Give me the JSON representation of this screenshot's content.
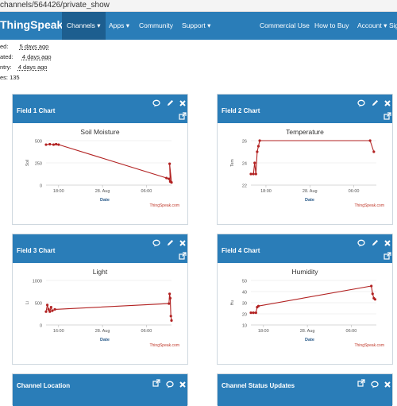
{
  "browser": {
    "url": "channels/564426/private_show"
  },
  "nav": {
    "brand": "ThingSpeak™",
    "items": [
      {
        "label": "Channels ▾",
        "active": true
      },
      {
        "label": "Apps ▾"
      },
      {
        "label": "Community"
      },
      {
        "label": "Support ▾"
      },
      {
        "label": "Commercial Use"
      },
      {
        "label": "How to Buy"
      },
      {
        "label": "Account ▾"
      },
      {
        "label": "Sig"
      }
    ]
  },
  "channel_info": [
    {
      "label": "ed:",
      "value": "5 days ago"
    },
    {
      "label": "ated:",
      "value": "4 days ago"
    },
    {
      "label": "ntry:",
      "value": "4 days ago"
    },
    {
      "label": "es: 135",
      "value": ""
    }
  ],
  "panels": {
    "field1": {
      "title": "Field 1 Chart"
    },
    "field2": {
      "title": "Field 2 Chart"
    },
    "field3": {
      "title": "Field 3 Chart"
    },
    "field4": {
      "title": "Field 4 Chart"
    },
    "location": {
      "title": "Channel Location"
    },
    "status": {
      "title": "Channel Status Updates"
    }
  },
  "chart_data": [
    {
      "id": "c1",
      "type": "line",
      "title": "Soil Moisture",
      "xlabel": "Date",
      "ylabel": "Soil",
      "ylim": [
        0,
        500
      ],
      "yticks": [
        0,
        250,
        500
      ],
      "xticks": [
        {
          "label": "18:00",
          "t": 0.1
        },
        {
          "label": "28. Aug",
          "t": 0.45
        },
        {
          "label": "06:00",
          "t": 0.8
        }
      ],
      "credit": "ThingSpeak.com",
      "color": "#b22222",
      "points": [
        [
          0.0,
          455
        ],
        [
          0.03,
          460
        ],
        [
          0.06,
          455
        ],
        [
          0.08,
          460
        ],
        [
          0.1,
          455
        ],
        [
          0.96,
          80
        ],
        [
          0.98,
          70
        ],
        [
          0.99,
          40
        ],
        [
          0.985,
          240
        ],
        [
          1.0,
          30
        ]
      ]
    },
    {
      "id": "c2",
      "type": "line",
      "title": "Temperature",
      "xlabel": "Date",
      "ylabel": "Tem",
      "ylim": [
        22,
        26
      ],
      "yticks": [
        22,
        24,
        26
      ],
      "xticks": [
        {
          "label": "18:00",
          "t": 0.12
        },
        {
          "label": "28. Aug",
          "t": 0.47
        },
        {
          "label": "06:00",
          "t": 0.82
        }
      ],
      "credit": "ThingSpeak.com",
      "color": "#b22222",
      "points": [
        [
          0.0,
          23
        ],
        [
          0.02,
          23
        ],
        [
          0.03,
          24
        ],
        [
          0.04,
          23
        ],
        [
          0.05,
          25
        ],
        [
          0.06,
          25.5
        ],
        [
          0.07,
          26
        ],
        [
          0.95,
          26
        ],
        [
          0.98,
          25
        ]
      ]
    },
    {
      "id": "c3",
      "type": "line",
      "title": "Light",
      "xlabel": "Date",
      "ylabel": "Li",
      "ylim": [
        0,
        1000
      ],
      "yticks": [
        0,
        500,
        1000
      ],
      "xticks": [
        {
          "label": "16:00",
          "t": 0.1
        },
        {
          "label": "28. Aug",
          "t": 0.45
        },
        {
          "label": "06:00",
          "t": 0.8
        }
      ],
      "credit": "ThingSpeak.com",
      "color": "#b22222",
      "points": [
        [
          0.0,
          300
        ],
        [
          0.01,
          450
        ],
        [
          0.02,
          350
        ],
        [
          0.03,
          300
        ],
        [
          0.04,
          400
        ],
        [
          0.05,
          320
        ],
        [
          0.07,
          350
        ],
        [
          0.98,
          480
        ],
        [
          0.985,
          700
        ],
        [
          0.99,
          600
        ],
        [
          0.995,
          200
        ],
        [
          1.0,
          100
        ]
      ]
    },
    {
      "id": "c4",
      "type": "line",
      "title": "Humidity",
      "xlabel": "Date",
      "ylabel": "Hu",
      "ylim": [
        10,
        50
      ],
      "yticks": [
        10,
        20,
        30,
        40,
        50
      ],
      "xticks": [
        {
          "label": "18:00",
          "t": 0.1
        },
        {
          "label": "28. Aug",
          "t": 0.45
        },
        {
          "label": "06:00",
          "t": 0.8
        }
      ],
      "credit": "ThingSpeak.com",
      "color": "#b22222",
      "points": [
        [
          0.0,
          21
        ],
        [
          0.02,
          21
        ],
        [
          0.04,
          21
        ],
        [
          0.05,
          26
        ],
        [
          0.06,
          27
        ],
        [
          0.96,
          45
        ],
        [
          0.97,
          38
        ],
        [
          0.98,
          34
        ],
        [
          0.99,
          33
        ]
      ]
    }
  ]
}
